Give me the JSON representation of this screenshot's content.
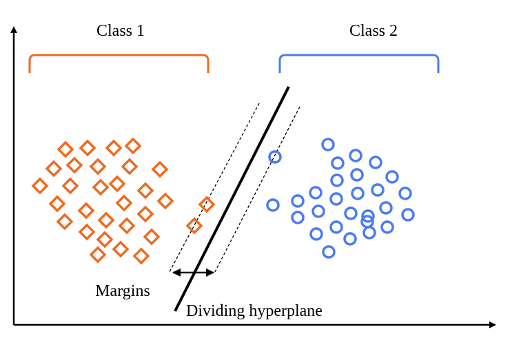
{
  "labels": {
    "class1": "Class 1",
    "class2": "Class 2",
    "margins": "Margins",
    "hyperplane": "Dividing hyperplane"
  },
  "colors": {
    "class1": "#F06A1F",
    "class2": "#4A7CF0",
    "axis": "#000000"
  },
  "markers": {
    "class1": "diamond",
    "class2": "circle"
  }
}
